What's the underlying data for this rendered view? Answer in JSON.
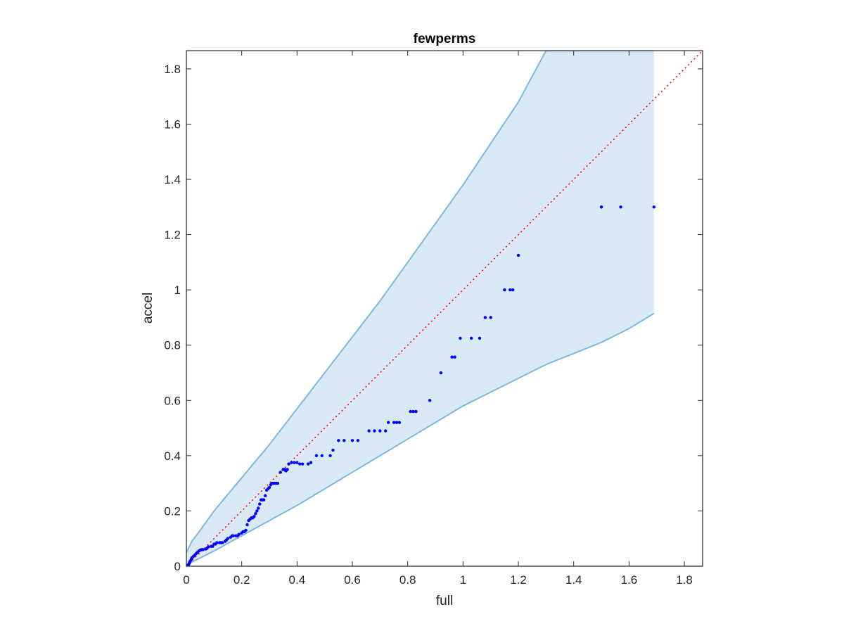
{
  "chart_data": {
    "type": "scatter",
    "title": "fewperms",
    "xlabel": "full",
    "ylabel": "accel",
    "xlim": [
      0,
      1.866
    ],
    "ylim": [
      0,
      1.866
    ],
    "xticks": [
      0,
      0.2,
      0.4,
      0.6,
      0.8,
      1,
      1.2,
      1.4,
      1.6,
      1.8
    ],
    "yticks": [
      0,
      0.2,
      0.4,
      0.6,
      0.8,
      1,
      1.2,
      1.4,
      1.6,
      1.8
    ],
    "xtick_labels": [
      "0",
      "0.2",
      "0.4",
      "0.6",
      "0.8",
      "1",
      "1.2",
      "1.4",
      "1.6",
      "1.8"
    ],
    "ytick_labels": [
      "0",
      "0.2",
      "0.4",
      "0.6",
      "0.8",
      "1",
      "1.2",
      "1.4",
      "1.6",
      "1.8"
    ],
    "grid": false,
    "colors": {
      "points": "#0000ff",
      "reference_line": "#ff0000",
      "band_fill": "#d9e9f5",
      "band_edge": "#7db8de",
      "axes": "#262626"
    },
    "reference_line": {
      "style": "dotted",
      "x": [
        0,
        1.866
      ],
      "y": [
        0,
        1.866
      ]
    },
    "band": {
      "x": [
        0,
        0.02,
        0.05,
        0.1,
        0.2,
        0.3,
        0.4,
        0.5,
        0.6,
        0.7,
        0.8,
        0.9,
        1.0,
        1.1,
        1.2,
        1.3,
        1.4,
        1.5,
        1.6,
        1.69
      ],
      "upper": [
        0.05,
        0.09,
        0.13,
        0.2,
        0.32,
        0.44,
        0.57,
        0.7,
        0.83,
        0.96,
        1.1,
        1.24,
        1.38,
        1.53,
        1.68,
        1.866,
        1.866,
        1.866,
        1.866,
        1.866
      ],
      "lower": [
        0,
        0.015,
        0.03,
        0.055,
        0.11,
        0.165,
        0.22,
        0.28,
        0.34,
        0.4,
        0.46,
        0.52,
        0.58,
        0.63,
        0.68,
        0.73,
        0.77,
        0.81,
        0.86,
        0.915
      ]
    },
    "points": {
      "x": [
        0.002,
        0.004,
        0.006,
        0.008,
        0.01,
        0.012,
        0.015,
        0.018,
        0.02,
        0.025,
        0.03,
        0.035,
        0.04,
        0.045,
        0.05,
        0.055,
        0.06,
        0.07,
        0.075,
        0.08,
        0.09,
        0.095,
        0.1,
        0.105,
        0.11,
        0.12,
        0.125,
        0.13,
        0.14,
        0.145,
        0.15,
        0.16,
        0.165,
        0.17,
        0.18,
        0.185,
        0.19,
        0.2,
        0.205,
        0.21,
        0.215,
        0.22,
        0.225,
        0.23,
        0.235,
        0.24,
        0.245,
        0.25,
        0.255,
        0.26,
        0.265,
        0.27,
        0.275,
        0.28,
        0.285,
        0.29,
        0.295,
        0.3,
        0.305,
        0.31,
        0.315,
        0.32,
        0.325,
        0.33,
        0.34,
        0.35,
        0.355,
        0.36,
        0.365,
        0.37,
        0.38,
        0.39,
        0.4,
        0.41,
        0.42,
        0.44,
        0.45,
        0.47,
        0.49,
        0.52,
        0.53,
        0.55,
        0.57,
        0.6,
        0.62,
        0.66,
        0.68,
        0.7,
        0.72,
        0.73,
        0.75,
        0.76,
        0.77,
        0.81,
        0.82,
        0.83,
        0.88,
        0.92,
        0.96,
        0.97,
        0.99,
        1.03,
        1.06,
        1.08,
        1.1,
        1.15,
        1.17,
        1.18,
        1.2,
        1.5,
        1.57,
        1.69
      ],
      "y": [
        0,
        0.002,
        0.004,
        0.006,
        0.01,
        0.015,
        0.02,
        0.025,
        0.03,
        0.035,
        0.04,
        0.045,
        0.05,
        0.055,
        0.058,
        0.06,
        0.06,
        0.062,
        0.065,
        0.07,
        0.072,
        0.072,
        0.08,
        0.08,
        0.085,
        0.085,
        0.085,
        0.085,
        0.09,
        0.095,
        0.1,
        0.105,
        0.11,
        0.11,
        0.11,
        0.11,
        0.115,
        0.12,
        0.125,
        0.125,
        0.13,
        0.15,
        0.165,
        0.17,
        0.175,
        0.175,
        0.18,
        0.19,
        0.2,
        0.21,
        0.225,
        0.24,
        0.24,
        0.24,
        0.255,
        0.275,
        0.28,
        0.285,
        0.295,
        0.3,
        0.3,
        0.3,
        0.3,
        0.3,
        0.34,
        0.35,
        0.35,
        0.345,
        0.35,
        0.37,
        0.375,
        0.375,
        0.375,
        0.37,
        0.37,
        0.37,
        0.375,
        0.4,
        0.4,
        0.4,
        0.42,
        0.455,
        0.455,
        0.455,
        0.455,
        0.49,
        0.49,
        0.49,
        0.49,
        0.52,
        0.52,
        0.52,
        0.52,
        0.56,
        0.56,
        0.56,
        0.6,
        0.7,
        0.757,
        0.757,
        0.825,
        0.825,
        0.825,
        0.9,
        0.9,
        1.0,
        1.0,
        1.0,
        1.125,
        1.3,
        1.3,
        1.3
      ]
    }
  }
}
